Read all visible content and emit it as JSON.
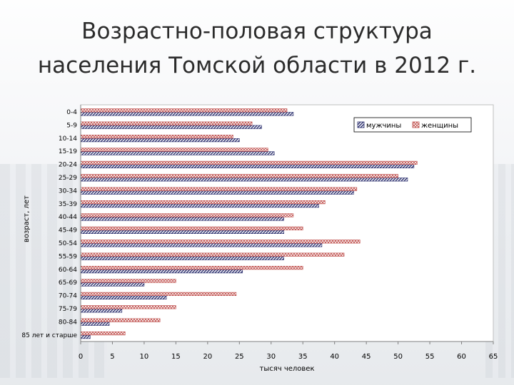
{
  "slide": {
    "title_line1": "Возрастно-половая структура",
    "title_line2": "населения Томской области в 2012 г."
  },
  "chart_data": {
    "type": "bar",
    "orientation": "horizontal",
    "ylabel": "возраст, лет",
    "xlabel": "тысяч человек",
    "xlim": [
      0,
      65
    ],
    "xticks": [
      0,
      5,
      10,
      15,
      20,
      25,
      30,
      35,
      40,
      45,
      50,
      55,
      60,
      65
    ],
    "grid": false,
    "legend_position": "top-right",
    "categories": [
      "0-4",
      "5-9",
      "10-14",
      "15-19",
      "20-24",
      "25-29",
      "30-34",
      "35-39",
      "40-44",
      "45-49",
      "50-54",
      "55-59",
      "60-64",
      "65-69",
      "70-74",
      "75-79",
      "80-84",
      "85 лет и старше"
    ],
    "series": [
      {
        "name": "мужчины",
        "color": "#2b2f6e",
        "pattern": "diagonal-hatch",
        "values": [
          33.5,
          28.5,
          25,
          30.5,
          52.5,
          51.5,
          43,
          37.5,
          32,
          32,
          38,
          32,
          25.5,
          10,
          13.5,
          6.5,
          4.5,
          1.5
        ]
      },
      {
        "name": "женщины",
        "color": "#c0504d",
        "pattern": "crosshatch",
        "values": [
          32.5,
          27,
          24,
          29.5,
          53,
          50,
          43.5,
          38.5,
          33.5,
          35,
          44,
          41.5,
          35,
          15,
          24.5,
          15,
          12.5,
          7
        ]
      }
    ]
  }
}
